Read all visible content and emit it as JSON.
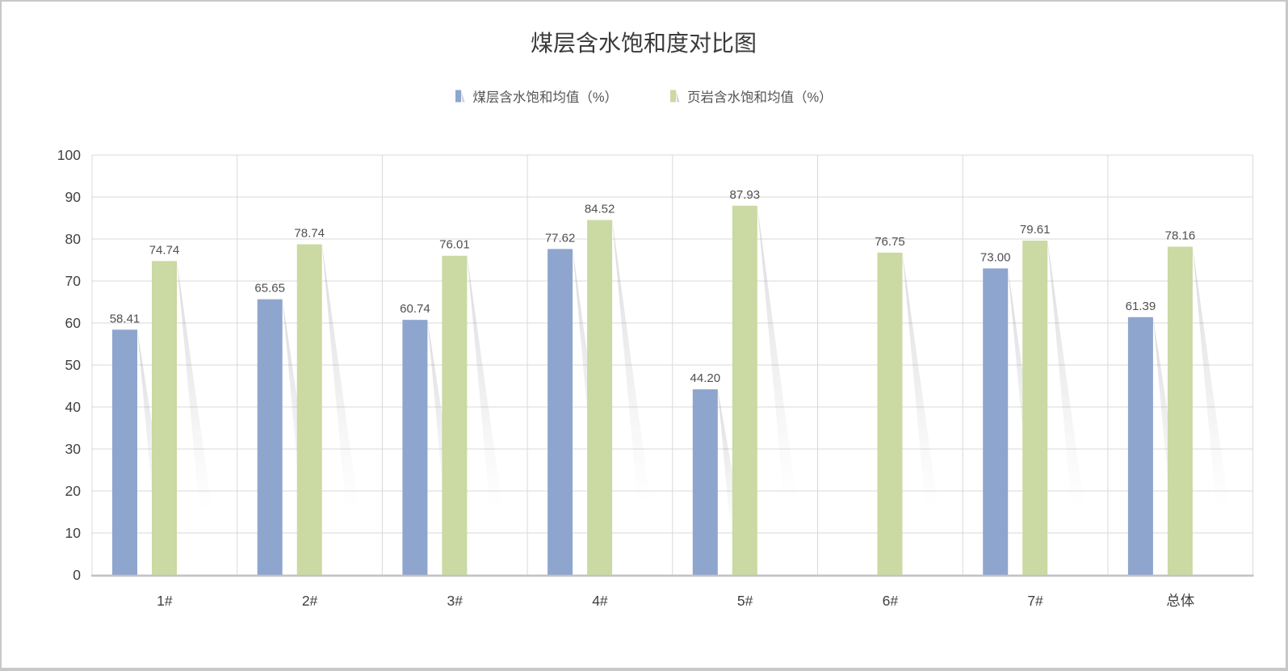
{
  "chart_data": {
    "type": "bar",
    "title": "煤层含水饱和度对比图",
    "categories": [
      "1#",
      "2#",
      "3#",
      "4#",
      "5#",
      "6#",
      "7#",
      "总体"
    ],
    "series": [
      {
        "name": "煤层含水饱和均值（%）",
        "color": "#8EA5CE",
        "values": [
          58.41,
          65.65,
          60.74,
          77.62,
          44.2,
          null,
          73.0,
          61.39
        ]
      },
      {
        "name": "页岩含水饱和均值（%）",
        "color": "#CBD9A2",
        "values": [
          74.74,
          78.74,
          76.01,
          84.52,
          87.93,
          76.75,
          79.61,
          78.16
        ]
      }
    ],
    "xlabel": "",
    "ylabel": "",
    "ylim": [
      0,
      100
    ],
    "ytick_step": 10,
    "grid": true,
    "legend_position": "top",
    "value_labels": "2dp"
  },
  "style": {
    "background": "#ffffff",
    "frame_border": "#c8c8c8",
    "grid_color": "#d9d9d9",
    "axis_line_color": "#c3c3c7",
    "title_color": "#3a3a3a",
    "tick_label_color": "#404040",
    "value_label_color": "#4f4f4f",
    "legend_text_color": "#555555",
    "legend_marker_shadow": "#ced0d6",
    "bar_shadow_dark": "rgba(110,110,122,0.26)",
    "bar_shadow_mid": "rgba(140,140,152,0.13)",
    "bar_shadow_light": "rgba(175,175,186,0)"
  }
}
